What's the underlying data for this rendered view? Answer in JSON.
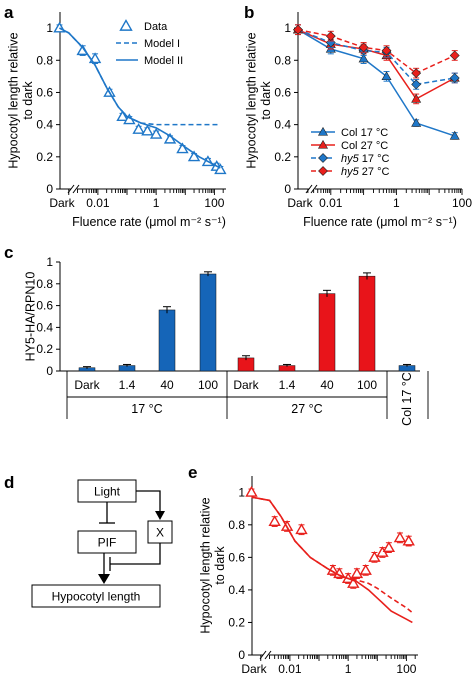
{
  "panels": [
    "a",
    "b",
    "c",
    "d",
    "e"
  ],
  "colors": {
    "blue": "#1f77c8",
    "red": "#e8201c",
    "bar_blue": "#1565b8",
    "bar_red": "#e8141a",
    "axis": "#000000"
  },
  "chart_data": [
    {
      "id": "a",
      "type": "scatter",
      "ylabel": "Hypocotyl length relative to dark",
      "xlabel": "Fluence rate (μmol m⁻² s⁻¹)",
      "xscale": "log",
      "xlim": [
        0.0005,
        250
      ],
      "ylim": [
        0,
        1.1
      ],
      "yticks": [
        0,
        0.2,
        0.4,
        0.6,
        0.8,
        1
      ],
      "ytick_labels": [
        "0",
        "0.2",
        "0.4",
        "0.6",
        "0.8",
        "1"
      ],
      "xticks": [
        0.01,
        1,
        100
      ],
      "xtick_labels": [
        "0.01",
        "1",
        "100"
      ],
      "dark_label": "Dark",
      "legend": [
        "Data",
        "Model I",
        "Model II"
      ],
      "legend_position": "top-right",
      "series": [
        {
          "name": "Data",
          "kind": "points",
          "marker": "triangle-open",
          "color": "#1f77c8",
          "x": [
            0.00048,
            0.003,
            0.008,
            0.025,
            0.07,
            0.12,
            0.25,
            0.5,
            1,
            3,
            8,
            20,
            60,
            120,
            160
          ],
          "y": [
            1.0,
            0.86,
            0.81,
            0.6,
            0.45,
            0.43,
            0.37,
            0.36,
            0.34,
            0.31,
            0.25,
            0.2,
            0.17,
            0.14,
            0.12
          ],
          "err": [
            0.02,
            0.03,
            0.03,
            0.02,
            0.02,
            0.02,
            0.02,
            0.02,
            0.02,
            0.02,
            0.02,
            0.02,
            0.02,
            0.02,
            0.02
          ]
        },
        {
          "name": "Model I",
          "kind": "line",
          "dash": true,
          "color": "#1f77c8",
          "x": [
            0.00048,
            0.001,
            0.003,
            0.008,
            0.02,
            0.05,
            0.1,
            0.3,
            1,
            3,
            10,
            30,
            100,
            160
          ],
          "y": [
            1.0,
            0.97,
            0.88,
            0.77,
            0.63,
            0.51,
            0.45,
            0.41,
            0.4,
            0.4,
            0.4,
            0.4,
            0.4,
            0.4
          ]
        },
        {
          "name": "Model II",
          "kind": "line",
          "dash": false,
          "color": "#1f77c8",
          "x": [
            0.00048,
            0.001,
            0.003,
            0.008,
            0.02,
            0.05,
            0.1,
            0.3,
            1,
            3,
            10,
            30,
            100,
            160
          ],
          "y": [
            1.0,
            0.97,
            0.88,
            0.77,
            0.63,
            0.51,
            0.45,
            0.41,
            0.38,
            0.33,
            0.26,
            0.2,
            0.15,
            0.13
          ]
        }
      ]
    },
    {
      "id": "b",
      "type": "line",
      "ylabel": "Hypocotyl length relative to dark",
      "xlabel": "Fluence rate (μmol m⁻² s⁻¹)",
      "xscale": "log",
      "xlim": [
        0.001,
        100
      ],
      "ylim": [
        0,
        1.1
      ],
      "yticks": [
        0,
        0.2,
        0.4,
        0.6,
        0.8,
        1
      ],
      "ytick_labels": [
        "0",
        "0.2",
        "0.4",
        "0.6",
        "0.8",
        "1"
      ],
      "xticks": [
        0.01,
        1,
        100
      ],
      "xtick_labels": [
        "0.01",
        "1",
        "100"
      ],
      "dark_label": "Dark",
      "legend": [
        "Col 17 °C",
        "Col 27 °C",
        "hy5 17 °C",
        "hy5 27 °C"
      ],
      "legend_position": "bottom-left",
      "series": [
        {
          "name": "Col 17 °C",
          "marker": "triangle",
          "dash": false,
          "color": "#1f77c8",
          "x": [
            0.001,
            0.01,
            0.1,
            0.5,
            4,
            60
          ],
          "y": [
            0.99,
            0.87,
            0.81,
            0.7,
            0.41,
            0.33
          ],
          "err": [
            0.03,
            0.03,
            0.03,
            0.03,
            0.02,
            0.02
          ]
        },
        {
          "name": "Col 27 °C",
          "marker": "triangle",
          "dash": false,
          "color": "#e8201c",
          "x": [
            0.001,
            0.01,
            0.1,
            0.5,
            4,
            60
          ],
          "y": [
            0.99,
            0.9,
            0.87,
            0.83,
            0.56,
            0.69
          ],
          "err": [
            0.03,
            0.03,
            0.03,
            0.03,
            0.03,
            0.03
          ]
        },
        {
          "name": "hy5 17 °C",
          "marker": "diamond",
          "dash": true,
          "color": "#1f77c8",
          "x": [
            0.001,
            0.01,
            0.1,
            0.5,
            4,
            60
          ],
          "y": [
            0.99,
            0.91,
            0.86,
            0.85,
            0.65,
            0.69
          ],
          "err": [
            0.03,
            0.03,
            0.03,
            0.03,
            0.03,
            0.03
          ]
        },
        {
          "name": "hy5 27 °C",
          "marker": "diamond",
          "dash": true,
          "color": "#e8201c",
          "x": [
            0.001,
            0.01,
            0.1,
            0.5,
            4,
            60
          ],
          "y": [
            0.99,
            0.95,
            0.88,
            0.86,
            0.72,
            0.83
          ],
          "err": [
            0.03,
            0.03,
            0.03,
            0.03,
            0.03,
            0.03
          ]
        }
      ]
    },
    {
      "id": "c",
      "type": "bar",
      "ylabel": "HY5-HA/RPN10",
      "ylim": [
        0,
        1.0
      ],
      "yticks": [
        0,
        0.2,
        0.4,
        0.6,
        0.8,
        1
      ],
      "ytick_labels": [
        "0",
        "0.2",
        "0.4",
        "0.6",
        "0.8",
        "1"
      ],
      "categories": [
        "Dark",
        "1.4",
        "40",
        "100",
        "Dark",
        "1.4",
        "40",
        "100",
        ""
      ],
      "groups": [
        "17 °C",
        "27 °C",
        "Col 17 °C"
      ],
      "values": [
        0.03,
        0.05,
        0.56,
        0.89,
        0.12,
        0.05,
        0.71,
        0.87,
        0.05
      ],
      "err": [
        0.01,
        0.01,
        0.03,
        0.02,
        0.02,
        0.01,
        0.03,
        0.03,
        0.01
      ],
      "bar_colors": [
        "blue",
        "blue",
        "blue",
        "blue",
        "red",
        "red",
        "red",
        "red",
        "blue"
      ]
    },
    {
      "id": "e",
      "type": "line",
      "ylabel": "Hypocotyl length relative to dark",
      "xlabel": "Fluence rate (μmol m⁻² s⁻¹)",
      "xscale": "log",
      "xlim": [
        0.0005,
        250
      ],
      "ylim": [
        0,
        1.1
      ],
      "yticks": [
        0,
        0.2,
        0.4,
        0.6,
        0.8,
        1
      ],
      "ytick_labels": [
        "0",
        "0.2",
        "0.4",
        "0.6",
        "0.8",
        "1"
      ],
      "xticks": [
        0.01,
        1,
        100
      ],
      "xtick_labels": [
        "0.01",
        "1",
        "100"
      ],
      "dark_label": "Dark",
      "series": [
        {
          "name": "",
          "kind": "points",
          "marker": "triangle-open",
          "color": "#e8201c",
          "x": [
            0.00048,
            0.003,
            0.008,
            0.025,
            0.3,
            0.5,
            1,
            1.5,
            2,
            4,
            8,
            15,
            25,
            60,
            120
          ],
          "y": [
            1.0,
            0.82,
            0.79,
            0.77,
            0.52,
            0.5,
            0.47,
            0.44,
            0.5,
            0.52,
            0.6,
            0.63,
            0.66,
            0.72,
            0.7
          ],
          "err": [
            0.02,
            0.03,
            0.03,
            0.03,
            0.03,
            0.03,
            0.03,
            0.03,
            0.03,
            0.03,
            0.03,
            0.03,
            0.03,
            0.03,
            0.03
          ]
        },
        {
          "name": "",
          "kind": "line",
          "dash": false,
          "color": "#e8201c",
          "x": [
            0.00048,
            0.002,
            0.005,
            0.015,
            0.05,
            0.2,
            0.5,
            1,
            2,
            5,
            10,
            30,
            100,
            160
          ],
          "y": [
            0.97,
            0.95,
            0.85,
            0.7,
            0.6,
            0.53,
            0.49,
            0.47,
            0.45,
            0.4,
            0.35,
            0.27,
            0.22,
            0.2
          ]
        },
        {
          "name": "",
          "kind": "line",
          "dash": true,
          "color": "#e8201c",
          "x": [
            0.00048,
            0.002,
            0.005,
            0.015,
            0.05,
            0.2,
            0.5,
            1,
            2,
            5,
            10,
            30,
            100,
            160
          ],
          "y": [
            0.97,
            0.95,
            0.85,
            0.7,
            0.6,
            0.53,
            0.49,
            0.47,
            0.46,
            0.44,
            0.41,
            0.35,
            0.29,
            0.26
          ]
        }
      ]
    }
  ],
  "diagram": {
    "nodes": {
      "light": "Light",
      "pif": "PIF",
      "x": "X",
      "hypocotyl": "Hypocotyl length"
    }
  }
}
